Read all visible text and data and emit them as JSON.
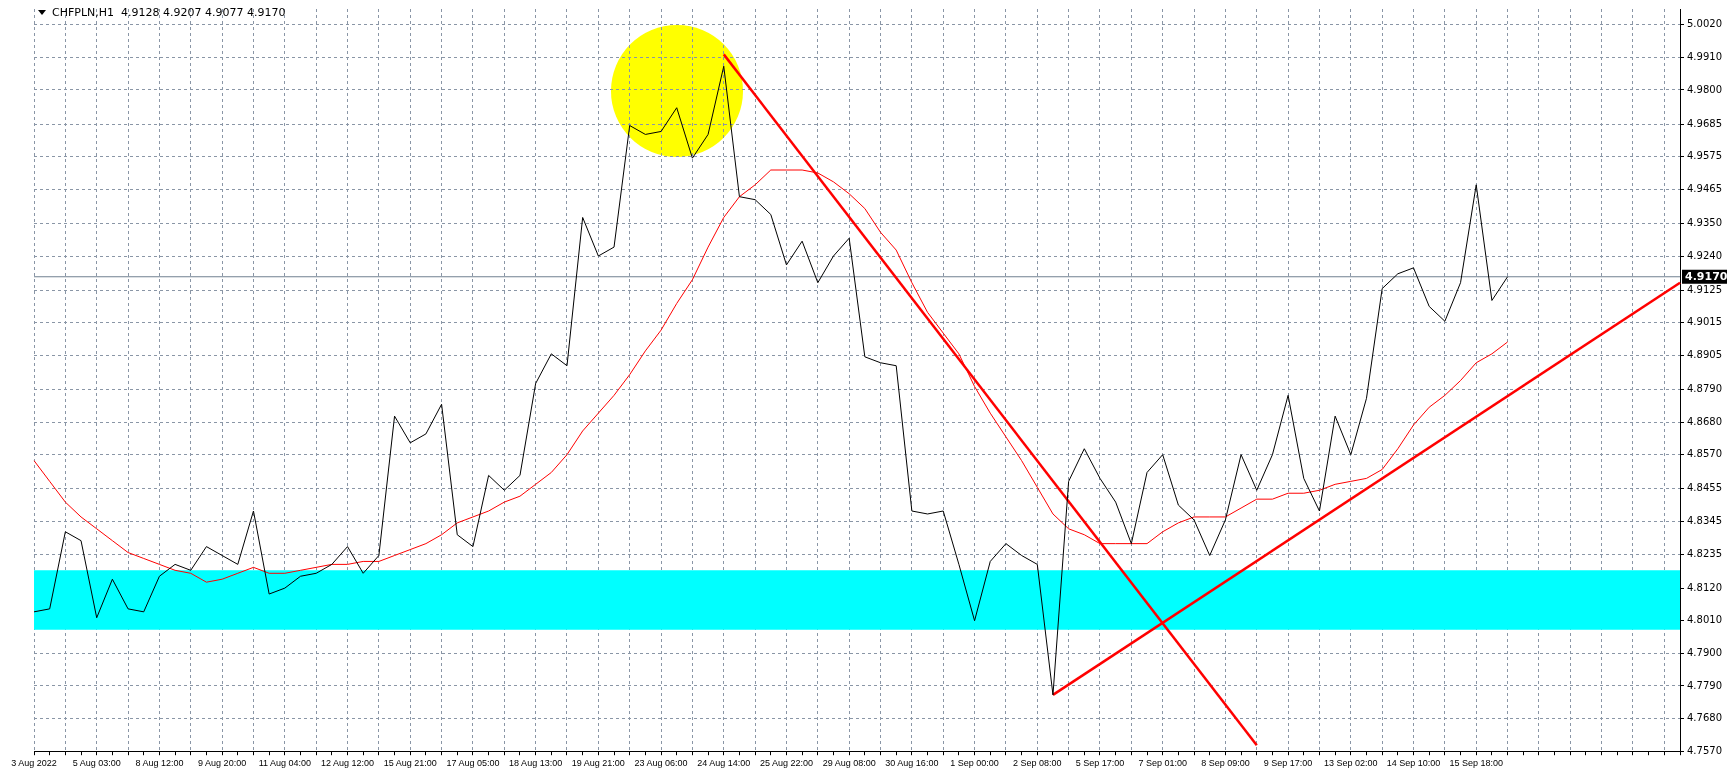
{
  "chart_data": {
    "type": "line",
    "title": "CHFPLN,H1  4.9128 4.9207 4.9077 4.9170",
    "categories": [
      "3 Aug 2022",
      null,
      null,
      null,
      "5 Aug 03:00",
      null,
      null,
      null,
      "8 Aug 12:00",
      null,
      null,
      null,
      "9 Aug 20:00",
      null,
      null,
      null,
      "11 Aug 04:00",
      null,
      null,
      null,
      "12 Aug 12:00",
      null,
      null,
      null,
      "15 Aug 21:00",
      null,
      null,
      null,
      "17 Aug 05:00",
      null,
      null,
      null,
      "18 Aug 13:00",
      null,
      null,
      null,
      "19 Aug 21:00",
      null,
      null,
      null,
      "23 Aug 06:00",
      null,
      null,
      null,
      "24 Aug 14:00",
      null,
      null,
      null,
      "25 Aug 22:00",
      null,
      null,
      null,
      "29 Aug 08:00",
      null,
      null,
      null,
      "30 Aug 16:00",
      null,
      null,
      null,
      "1 Sep 00:00",
      null,
      null,
      null,
      "2 Sep 08:00",
      null,
      null,
      null,
      "5 Sep 17:00",
      null,
      null,
      null,
      "7 Sep 01:00",
      null,
      null,
      null,
      "8 Sep 09:00",
      null,
      null,
      null,
      "9 Sep 17:00",
      null,
      null,
      null,
      "13 Sep 02:00",
      null,
      null,
      null,
      "14 Sep 10:00",
      null,
      null,
      null,
      "15 Sep 18:00",
      null,
      null,
      null,
      null,
      null,
      null,
      null,
      null,
      null,
      null,
      null,
      null,
      null
    ],
    "series": [
      {
        "color": "#000000",
        "values": [
          4.804,
          4.805,
          4.831,
          4.828,
          4.802,
          4.815,
          4.805,
          4.804,
          4.816,
          4.82,
          4.818,
          4.826,
          4.823,
          4.82,
          4.838,
          4.81,
          4.812,
          4.816,
          4.817,
          4.82,
          4.826,
          4.817,
          4.823,
          4.87,
          4.861,
          4.864,
          4.874,
          4.83,
          4.826,
          4.85,
          4.845,
          4.85,
          4.881,
          4.891,
          4.887,
          4.937,
          4.924,
          4.927,
          4.968,
          4.965,
          4.966,
          4.974,
          4.957,
          4.965,
          4.988,
          4.944,
          4.943,
          4.938,
          4.921,
          4.929,
          4.915,
          4.924,
          4.93,
          4.89,
          4.888,
          4.887,
          4.838,
          4.837,
          4.838,
          4.82,
          4.801,
          4.821,
          4.827,
          4.823,
          4.82,
          4.776,
          4.848,
          4.859,
          4.849,
          4.841,
          4.827,
          4.851,
          4.857,
          4.84,
          4.835,
          4.823,
          4.835,
          4.857,
          4.845,
          4.857,
          4.877,
          4.849,
          4.838,
          4.87,
          4.857,
          4.876,
          4.913,
          4.918,
          4.92,
          4.907,
          4.902,
          4.915,
          4.948,
          4.909,
          4.917,
          null,
          null,
          null,
          null,
          null,
          null,
          null,
          null,
          null,
          null,
          null
        ]
      },
      {
        "color": "#ff0000",
        "values": [
          4.855,
          4.848,
          4.841,
          4.836,
          4.832,
          4.828,
          4.824,
          4.822,
          4.82,
          4.818,
          4.817,
          4.814,
          4.815,
          4.817,
          4.819,
          4.817,
          4.817,
          4.818,
          4.819,
          4.82,
          4.82,
          4.821,
          4.821,
          4.823,
          4.825,
          4.827,
          4.83,
          4.834,
          4.836,
          4.838,
          4.841,
          4.843,
          4.847,
          4.851,
          4.857,
          4.865,
          4.871,
          4.877,
          4.884,
          4.892,
          4.899,
          4.908,
          4.916,
          4.927,
          4.937,
          4.944,
          4.948,
          4.953,
          4.953,
          4.953,
          4.952,
          4.949,
          4.945,
          4.94,
          4.932,
          4.926,
          4.915,
          4.905,
          4.898,
          4.891,
          4.88,
          4.871,
          4.863,
          4.855,
          4.846,
          4.837,
          4.832,
          4.83,
          4.827,
          4.827,
          4.827,
          4.827,
          4.831,
          4.834,
          4.836,
          4.836,
          4.836,
          4.839,
          4.842,
          4.842,
          4.844,
          4.844,
          4.845,
          4.847,
          4.848,
          4.849,
          4.852,
          4.859,
          4.867,
          4.873,
          4.877,
          4.882,
          4.888,
          4.891,
          4.895,
          null,
          null,
          null,
          null,
          null,
          null,
          null,
          null,
          null,
          null,
          null
        ]
      },
      {
        "color": "#ff0000",
        "values": [
          null,
          null,
          null,
          null,
          null,
          null,
          null,
          null,
          null,
          null,
          null,
          null,
          null,
          null,
          null,
          null,
          null,
          null,
          null,
          null,
          null,
          null,
          null,
          null,
          null,
          null,
          null,
          null,
          null,
          null,
          null,
          null,
          null,
          null,
          null,
          null,
          null,
          null,
          null,
          null,
          null,
          null,
          null,
          null,
          4.992,
          null,
          null,
          null,
          null,
          null,
          null,
          null,
          null,
          null,
          null,
          null,
          null,
          null,
          null,
          null,
          null,
          null,
          null,
          null,
          null,
          null,
          null,
          null,
          null,
          null,
          null,
          null,
          null,
          null,
          null,
          null,
          null,
          null,
          4.759,
          null,
          null,
          null,
          null,
          null,
          null,
          null,
          null,
          null,
          null,
          null,
          null,
          null,
          null,
          null,
          null,
          null,
          null,
          null,
          null,
          null,
          null,
          null,
          null,
          null,
          null,
          null
        ]
      },
      {
        "color": "#ff0000",
        "values": [
          null,
          null,
          null,
          null,
          null,
          null,
          null,
          null,
          null,
          null,
          null,
          null,
          null,
          null,
          null,
          null,
          null,
          null,
          null,
          null,
          null,
          null,
          null,
          null,
          null,
          null,
          null,
          null,
          null,
          null,
          null,
          null,
          null,
          null,
          null,
          null,
          null,
          null,
          null,
          null,
          null,
          null,
          null,
          null,
          null,
          null,
          null,
          null,
          null,
          null,
          null,
          null,
          null,
          null,
          null,
          null,
          null,
          null,
          null,
          null,
          null,
          null,
          null,
          null,
          null,
          4.776,
          null,
          null,
          null,
          null,
          null,
          null,
          null,
          null,
          null,
          null,
          null,
          null,
          null,
          null,
          null,
          null,
          null,
          null,
          null,
          null,
          null,
          null,
          null,
          null,
          null,
          null,
          null,
          null,
          null,
          null,
          null,
          null,
          null,
          null,
          null,
          null,
          null,
          null,
          null,
          4.915
        ]
      }
    ],
    "ylim": [
      4.757,
      5.0073
    ],
    "yticks": [
      {
        "value": 5.002,
        "label": "5.0020"
      },
      {
        "value": 4.991,
        "label": "4.9910"
      },
      {
        "value": 4.98,
        "label": "4.9800"
      },
      {
        "value": 4.9685,
        "label": "4.9685"
      },
      {
        "value": 4.9575,
        "label": "4.9575"
      },
      {
        "value": 4.9465,
        "label": "4.9465"
      },
      {
        "value": 4.935,
        "label": "4.9350"
      },
      {
        "value": 4.924,
        "label": "4.9240"
      },
      {
        "value": 4.9125,
        "label": "4.9125"
      },
      {
        "value": 4.9015,
        "label": "4.9015"
      },
      {
        "value": 4.8905,
        "label": "4.8905"
      },
      {
        "value": 4.879,
        "label": "4.8790"
      },
      {
        "value": 4.868,
        "label": "4.8680"
      },
      {
        "value": 4.857,
        "label": "4.8570"
      },
      {
        "value": 4.8455,
        "label": "4.8455"
      },
      {
        "value": 4.8345,
        "label": "4.8345"
      },
      {
        "value": 4.8235,
        "label": "4.8235"
      },
      {
        "value": 4.812,
        "label": "4.8120"
      },
      {
        "value": 4.801,
        "label": "4.8010"
      },
      {
        "value": 4.79,
        "label": "4.7900"
      },
      {
        "value": 4.779,
        "label": "4.7790"
      },
      {
        "value": 4.768,
        "label": "4.7680"
      },
      {
        "value": 4.757,
        "label": "4.7570"
      }
    ],
    "grid": true,
    "legend": false,
    "marker": "none",
    "bands": [
      {
        "axis": "y",
        "from": 4.798,
        "to": 4.818,
        "color": "#00ffff"
      }
    ],
    "ref_lines": [
      {
        "axis": "y",
        "value": 4.917,
        "label": "4.9170",
        "color": "#708090"
      }
    ]
  }
}
